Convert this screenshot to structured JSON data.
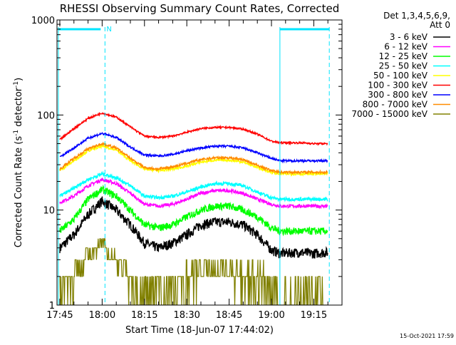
{
  "chart_data": {
    "type": "line",
    "title": "RHESSI Observing Summary Count Rates, Corrected",
    "xlabel": "Start Time (18-Jun-07 17:44:02)",
    "ylabel": "Corrected Count Rate (s⁻¹ detector⁻¹)",
    "ylabel_parts": {
      "main": "Corrected Count Rate (s",
      "exp1": "-1",
      "mid": " detector",
      "exp2": "-1",
      "end": ")"
    },
    "y_scale": "log",
    "ylim": [
      1,
      1000
    ],
    "yticks": [
      1,
      10,
      100,
      1000
    ],
    "ytick_labels": [
      "1",
      "10",
      "100",
      "1000"
    ],
    "xlim_minutes": [
      -1,
      100
    ],
    "xticks": [
      "17:45",
      "18:00",
      "18:15",
      "18:30",
      "18:45",
      "19:00",
      "19:15"
    ],
    "xtick_minutes": [
      0,
      15,
      30,
      45,
      60,
      75,
      90
    ],
    "legend_title_lines": [
      "Det 1,3,4,5,6,9,",
      "Att 0"
    ],
    "legend_position": "right",
    "footer_date": "15-Oct-2021 17:59",
    "annotations": {
      "marker_label": "N",
      "left_bar": {
        "start_min": -0.5,
        "end_min": 16
      },
      "right_bar": {
        "start_min": 78,
        "end_min": 95.5
      },
      "vlines_min": [
        -0.5,
        16,
        78,
        95.5
      ]
    },
    "series": [
      {
        "name": "3 - 6 keV",
        "color": "#000000",
        "noise": 0.12,
        "points": [
          [
            0,
            4
          ],
          [
            5,
            5.5
          ],
          [
            10,
            9
          ],
          [
            15,
            12.5
          ],
          [
            20,
            10
          ],
          [
            25,
            7
          ],
          [
            30,
            4.5
          ],
          [
            35,
            4
          ],
          [
            40,
            4.5
          ],
          [
            45,
            5.5
          ],
          [
            50,
            7
          ],
          [
            55,
            7.5
          ],
          [
            60,
            7.5
          ],
          [
            65,
            7
          ],
          [
            70,
            5.5
          ],
          [
            75,
            3.8
          ],
          [
            78,
            3.5
          ],
          [
            85,
            3.6
          ],
          [
            90,
            3.5
          ],
          [
            95,
            3.6
          ]
        ]
      },
      {
        "name": "6 - 12 keV",
        "color": "#ff00ff",
        "noise": 0.04,
        "points": [
          [
            0,
            12
          ],
          [
            5,
            14
          ],
          [
            10,
            18
          ],
          [
            15,
            21
          ],
          [
            20,
            19
          ],
          [
            25,
            15
          ],
          [
            30,
            11.5
          ],
          [
            35,
            11
          ],
          [
            40,
            11.5
          ],
          [
            45,
            13
          ],
          [
            50,
            15
          ],
          [
            55,
            16
          ],
          [
            60,
            16
          ],
          [
            65,
            15
          ],
          [
            70,
            13
          ],
          [
            75,
            11.5
          ],
          [
            78,
            11
          ],
          [
            85,
            11
          ],
          [
            90,
            11
          ],
          [
            95,
            11
          ]
        ]
      },
      {
        "name": "12 - 25 keV",
        "color": "#00ff00",
        "noise": 0.09,
        "points": [
          [
            0,
            6
          ],
          [
            5,
            8
          ],
          [
            10,
            13
          ],
          [
            15,
            16.5
          ],
          [
            20,
            14
          ],
          [
            25,
            10
          ],
          [
            30,
            7
          ],
          [
            35,
            6.5
          ],
          [
            40,
            7
          ],
          [
            45,
            8.5
          ],
          [
            50,
            10
          ],
          [
            55,
            11
          ],
          [
            60,
            11
          ],
          [
            65,
            10
          ],
          [
            70,
            8.5
          ],
          [
            75,
            6.5
          ],
          [
            78,
            6
          ],
          [
            85,
            6
          ],
          [
            90,
            6
          ],
          [
            95,
            6
          ]
        ]
      },
      {
        "name": "25 - 50 keV",
        "color": "#00ffff",
        "noise": 0.04,
        "points": [
          [
            0,
            14
          ],
          [
            5,
            17
          ],
          [
            10,
            21
          ],
          [
            15,
            24
          ],
          [
            20,
            22
          ],
          [
            25,
            18
          ],
          [
            30,
            14
          ],
          [
            35,
            13.5
          ],
          [
            40,
            14
          ],
          [
            45,
            15.5
          ],
          [
            50,
            17.5
          ],
          [
            55,
            19
          ],
          [
            60,
            19
          ],
          [
            65,
            18
          ],
          [
            70,
            15.5
          ],
          [
            75,
            13.5
          ],
          [
            78,
            13
          ],
          [
            85,
            13
          ],
          [
            90,
            13
          ],
          [
            95,
            13
          ]
        ]
      },
      {
        "name": "50 - 100 keV",
        "color": "#ffff00",
        "noise": 0.03,
        "points": [
          [
            0,
            26
          ],
          [
            5,
            33
          ],
          [
            10,
            42
          ],
          [
            15,
            47
          ],
          [
            20,
            43
          ],
          [
            25,
            33
          ],
          [
            30,
            27
          ],
          [
            35,
            26
          ],
          [
            40,
            27
          ],
          [
            45,
            29
          ],
          [
            50,
            32
          ],
          [
            55,
            33.5
          ],
          [
            60,
            33.5
          ],
          [
            65,
            32
          ],
          [
            70,
            28
          ],
          [
            75,
            25
          ],
          [
            78,
            24
          ],
          [
            85,
            24
          ],
          [
            90,
            24
          ],
          [
            95,
            24
          ]
        ]
      },
      {
        "name": "100 - 300 keV",
        "color": "#ff0000",
        "noise": 0.02,
        "points": [
          [
            0,
            55
          ],
          [
            5,
            72
          ],
          [
            10,
            92
          ],
          [
            15,
            105
          ],
          [
            20,
            95
          ],
          [
            25,
            75
          ],
          [
            30,
            60
          ],
          [
            35,
            58
          ],
          [
            40,
            60
          ],
          [
            45,
            66
          ],
          [
            50,
            72
          ],
          [
            55,
            74
          ],
          [
            60,
            74
          ],
          [
            65,
            71
          ],
          [
            70,
            63
          ],
          [
            75,
            53
          ],
          [
            78,
            51
          ],
          [
            85,
            51
          ],
          [
            90,
            50
          ],
          [
            95,
            50
          ]
        ]
      },
      {
        "name": "300 - 800 keV",
        "color": "#0000ff",
        "noise": 0.025,
        "points": [
          [
            0,
            36
          ],
          [
            5,
            45
          ],
          [
            10,
            57
          ],
          [
            15,
            64
          ],
          [
            20,
            58
          ],
          [
            25,
            46
          ],
          [
            30,
            38
          ],
          [
            35,
            37
          ],
          [
            40,
            38.5
          ],
          [
            45,
            42
          ],
          [
            50,
            45
          ],
          [
            55,
            47
          ],
          [
            60,
            47
          ],
          [
            65,
            45
          ],
          [
            70,
            40
          ],
          [
            75,
            35
          ],
          [
            78,
            33
          ],
          [
            85,
            33
          ],
          [
            90,
            33
          ],
          [
            95,
            33
          ]
        ]
      },
      {
        "name": "800 - 7000 keV",
        "color": "#ff8c00",
        "noise": 0.03,
        "points": [
          [
            0,
            27
          ],
          [
            5,
            35
          ],
          [
            10,
            44
          ],
          [
            15,
            50
          ],
          [
            20,
            45
          ],
          [
            25,
            35
          ],
          [
            30,
            28
          ],
          [
            35,
            27
          ],
          [
            40,
            28.5
          ],
          [
            45,
            31
          ],
          [
            50,
            34
          ],
          [
            55,
            35.5
          ],
          [
            60,
            35.5
          ],
          [
            65,
            34
          ],
          [
            70,
            29.5
          ],
          [
            75,
            26
          ],
          [
            78,
            25
          ],
          [
            85,
            25
          ],
          [
            90,
            25
          ],
          [
            95,
            25
          ]
        ]
      },
      {
        "name": "7000 - 15000 keV",
        "color": "#808000",
        "noise": 0,
        "points": [
          [
            0,
            2
          ],
          [
            5,
            2
          ],
          [
            8,
            3
          ],
          [
            10,
            3.5
          ],
          [
            14,
            4
          ],
          [
            15,
            4.5
          ],
          [
            18,
            3.5
          ],
          [
            20,
            3
          ],
          [
            23,
            2
          ],
          [
            26,
            1.5
          ],
          [
            30,
            1.2
          ],
          [
            35,
            1.5
          ],
          [
            40,
            1.3
          ],
          [
            45,
            2
          ],
          [
            50,
            2.2
          ],
          [
            55,
            2.5
          ],
          [
            60,
            2.3
          ],
          [
            65,
            2
          ],
          [
            70,
            2
          ],
          [
            75,
            1.5
          ],
          [
            78,
            1.2
          ],
          [
            85,
            1.2
          ],
          [
            90,
            1.3
          ],
          [
            95,
            1.2
          ]
        ]
      }
    ]
  }
}
